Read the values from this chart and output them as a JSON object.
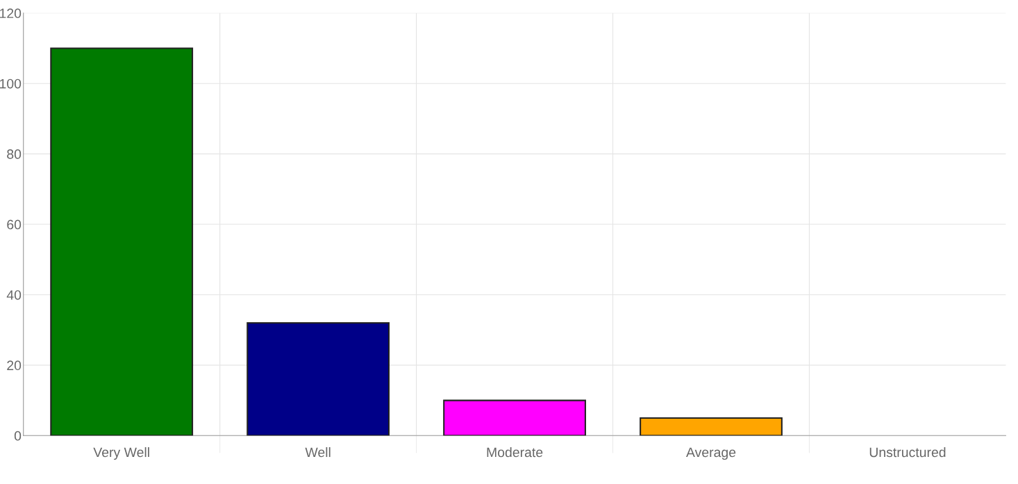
{
  "chart_data": {
    "type": "bar",
    "categories": [
      "Very Well",
      "Well",
      "Moderate",
      "Average",
      "Unstructured"
    ],
    "values": [
      110,
      32,
      10,
      5,
      0
    ],
    "colors": [
      "#007a00",
      "#000088",
      "#ff00ff",
      "#ffa500",
      null
    ],
    "ylim": [
      0,
      120
    ],
    "yticks": [
      0,
      20,
      40,
      60,
      80,
      100,
      120
    ],
    "grid": true
  }
}
